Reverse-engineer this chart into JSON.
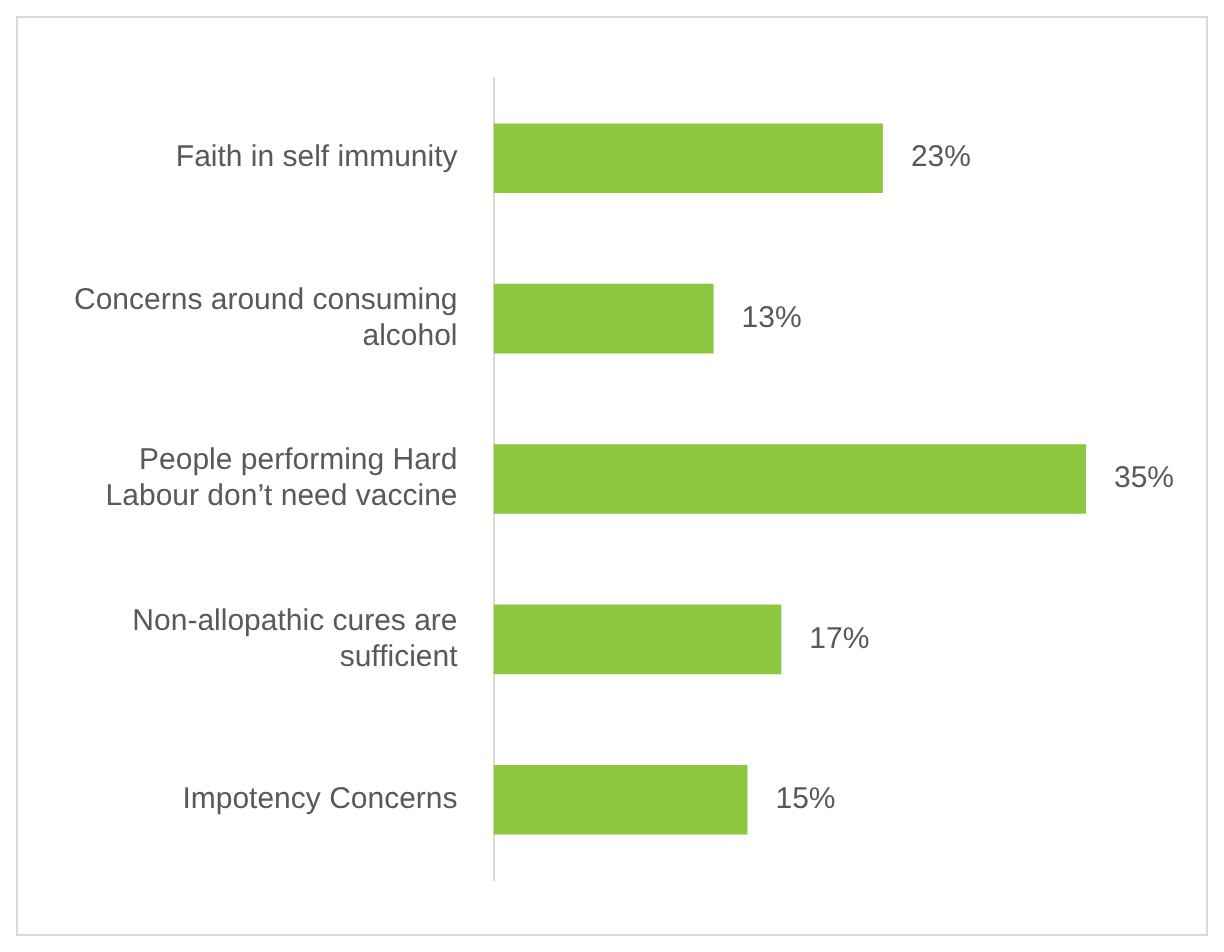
{
  "chart_data": {
    "type": "bar",
    "orientation": "horizontal",
    "categories": [
      "Faith in self immunity",
      "Concerns around consuming alcohol",
      "People performing Hard Labour don’t need vaccine",
      "Non-allopathic cures are sufficient",
      "Impotency Concerns"
    ],
    "values": [
      23,
      13,
      35,
      17,
      15
    ],
    "value_labels": [
      "23%",
      "13%",
      "35%",
      "17%",
      "15%"
    ],
    "color": "#8dc63f"
  }
}
